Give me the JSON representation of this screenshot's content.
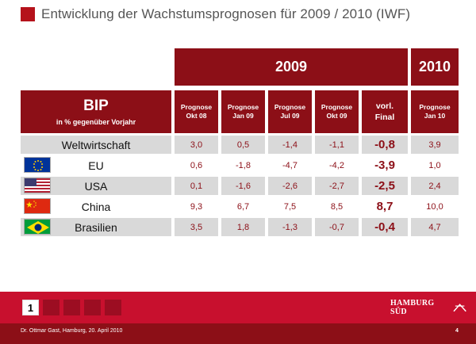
{
  "title": "Entwicklung der Wachstumsprognosen für 2009 / 2010 (IWF)",
  "header": {
    "year_2009": "2009",
    "year_2010": "2010"
  },
  "bip": {
    "title": "BIP",
    "subtitle": "in % gegenüber Vorjahr"
  },
  "columns": [
    {
      "line1": "Prognose",
      "line2": "Okt 08"
    },
    {
      "line1": "Prognose",
      "line2": "Jan 09"
    },
    {
      "line1": "Prognose",
      "line2": "Jul 09"
    },
    {
      "line1": "Prognose",
      "line2": "Okt 09"
    },
    {
      "line1": "vorl.",
      "line2": "Final"
    },
    {
      "line1": "Prognose",
      "line2": "Jan 10"
    }
  ],
  "rows": [
    {
      "label": "Weltwirtschaft",
      "flag": "",
      "values": [
        "3,0",
        "0,5",
        "-1,4",
        "-1,1",
        "-0,8",
        "3,9"
      ]
    },
    {
      "label": "EU",
      "flag": "eu-flag-icon",
      "values": [
        "0,6",
        "-1,8",
        "-4,7",
        "-4,2",
        "-3,9",
        "1,0"
      ]
    },
    {
      "label": "USA",
      "flag": "usa-flag-icon",
      "values": [
        "0,1",
        "-1,6",
        "-2,6",
        "-2,7",
        "-2,5",
        "2,4"
      ]
    },
    {
      "label": "China",
      "flag": "china-flag-icon",
      "values": [
        "9,3",
        "6,7",
        "7,5",
        "8,5",
        "8,7",
        "10,0"
      ]
    },
    {
      "label": "Brasilien",
      "flag": "brazil-flag-icon",
      "values": [
        "3,5",
        "1,8",
        "-1,3",
        "-0,7",
        "-0,4",
        "4,7"
      ]
    }
  ],
  "pagination": {
    "current": "1"
  },
  "logo_text": "HAMBURG SÜD",
  "footer": {
    "text": "Dr. Ottmar Gast, Hamburg, 20. April 2010",
    "page": "4"
  },
  "colors": {
    "dark_red": "#8c0f17",
    "bright_red": "#c8102e",
    "grey": "#d9d9d9"
  }
}
